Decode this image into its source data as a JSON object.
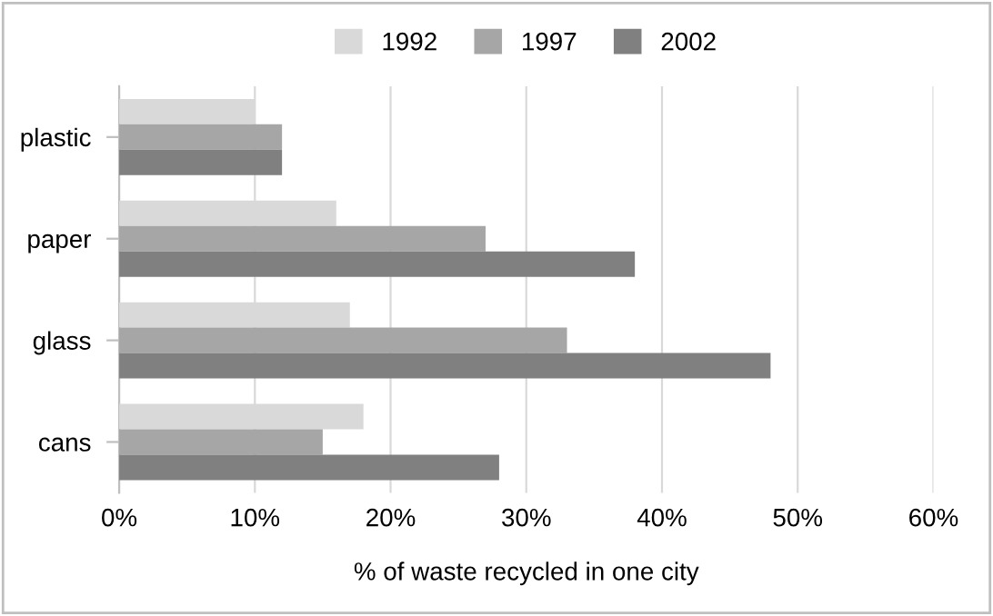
{
  "chart_data": {
    "type": "bar",
    "orientation": "horizontal",
    "xlabel": "% of waste recycled in one city",
    "categories": [
      "plastic",
      "paper",
      "glass",
      "cans"
    ],
    "series": [
      {
        "name": "1992",
        "color": "#d9d9d9",
        "values": [
          10,
          16,
          17,
          18
        ]
      },
      {
        "name": "1997",
        "color": "#a6a6a6",
        "values": [
          12,
          27,
          33,
          15
        ]
      },
      {
        "name": "2002",
        "color": "#808080",
        "values": [
          12,
          38,
          48,
          28
        ]
      }
    ],
    "xlim": [
      0,
      60
    ],
    "xticks": [
      {
        "value": 0,
        "label": "0%"
      },
      {
        "value": 10,
        "label": "10%"
      },
      {
        "value": 20,
        "label": "20%"
      },
      {
        "value": 30,
        "label": "30%"
      },
      {
        "value": 40,
        "label": "40%"
      },
      {
        "value": 50,
        "label": "50%"
      },
      {
        "value": 60,
        "label": "60%"
      }
    ],
    "grid": "x",
    "legend": "top"
  }
}
